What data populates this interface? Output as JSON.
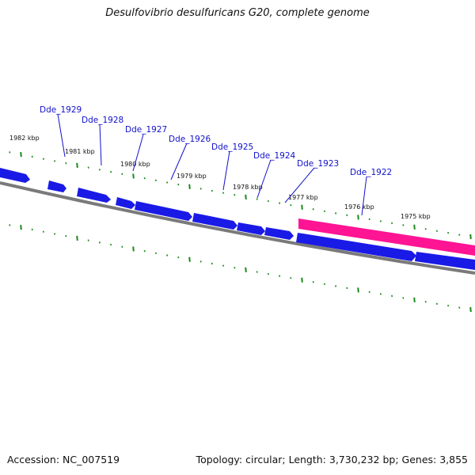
{
  "title": "Desulfovibrio desulfuricans G20, complete genome",
  "footer": {
    "accession": "Accession: NC_007519",
    "summary": "Topology: circular; Length: 3,730,232 bp; Genes: 3,855"
  },
  "colors": {
    "gene_forward": "#1a1ae6",
    "gene_highlight": "#ff1493",
    "backbone": "#808080",
    "tick": "#1a8a1a",
    "gene_label": "#1111cc"
  },
  "kbp_labels": [
    "1982 kbp",
    "1981 kbp",
    "1980 kbp",
    "1979 kbp",
    "1978 kbp",
    "1977 kbp",
    "1976 kbp",
    "1975 kbp"
  ],
  "gene_labels": [
    "Dde_1929",
    "Dde_1928",
    "Dde_1927",
    "Dde_1926",
    "Dde_1925",
    "Dde_1924",
    "Dde_1923",
    "Dde_1922"
  ]
}
